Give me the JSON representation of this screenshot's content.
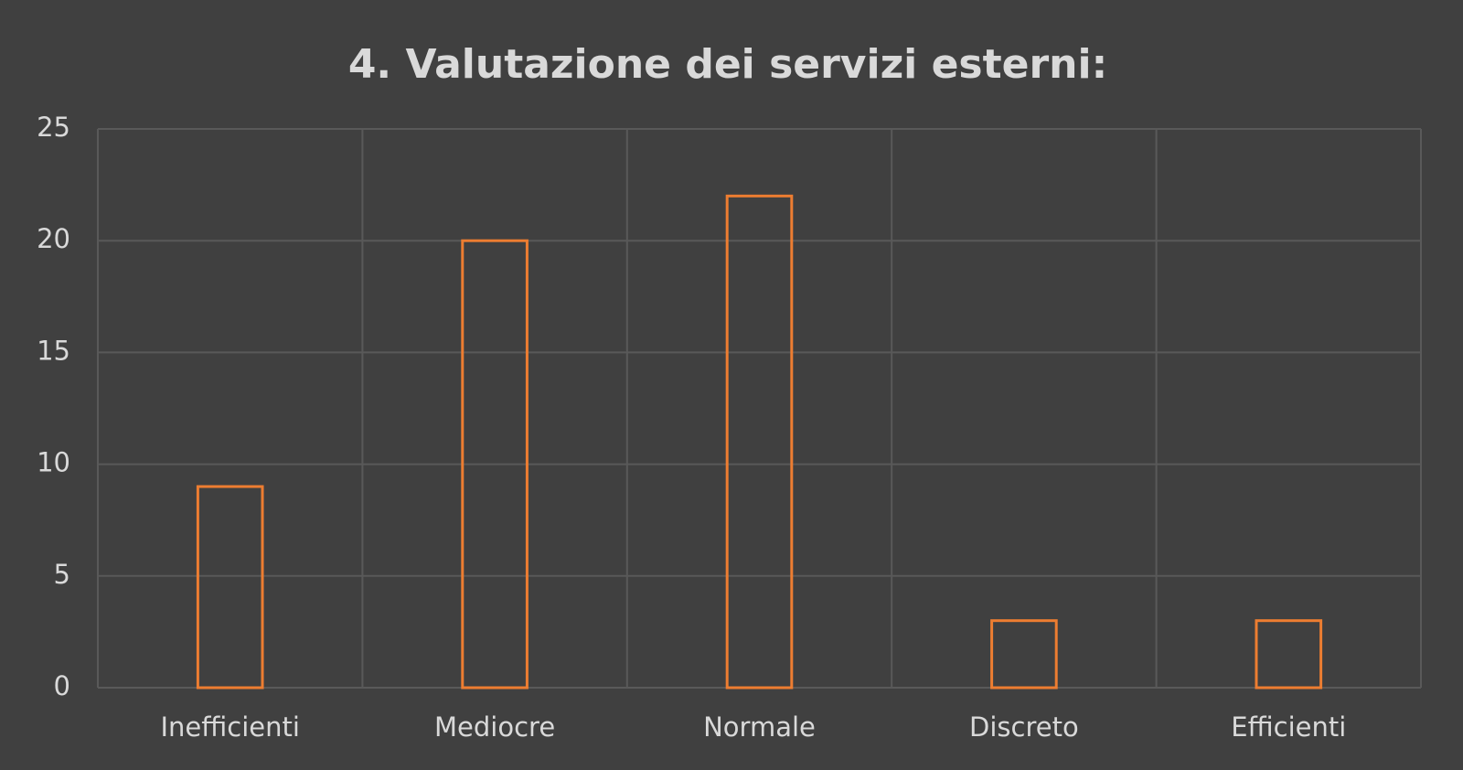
{
  "chart_data": {
    "type": "bar",
    "title": "4. Valutazione dei servizi esterni:",
    "categories": [
      "Inefficienti",
      "Mediocre",
      "Normale",
      "Discreto",
      "Efficienti"
    ],
    "values": [
      9,
      20,
      22,
      3,
      3
    ],
    "color": "#ed7d31",
    "fill": "none",
    "ylim": [
      0,
      25
    ],
    "yticks": [
      0,
      5,
      10,
      15,
      20,
      25
    ],
    "grid": true
  }
}
